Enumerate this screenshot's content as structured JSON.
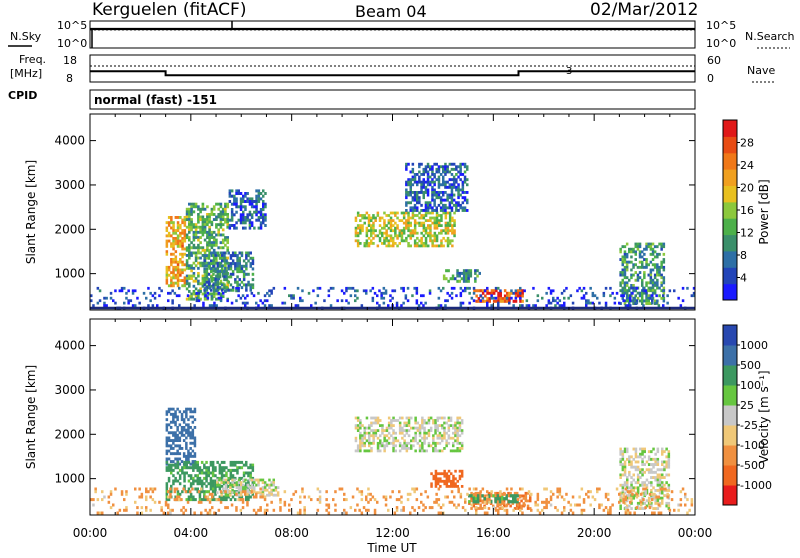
{
  "header": {
    "station": "Kerguelen (fitACF)",
    "beam": "Beam 04",
    "date": "02/Mar/2012"
  },
  "noise_panel": {
    "left_label": "N.Sky",
    "right_label": "N.Search",
    "left_ticks": [
      "10^5",
      "10^0"
    ],
    "right_ticks": [
      "10^5",
      "10^0"
    ]
  },
  "freq_panel": {
    "left_label_1": "Freq.",
    "left_label_2": "[MHz]",
    "left_ticks": [
      "18",
      "8"
    ],
    "right_label": "Nave",
    "right_ticks": [
      "60",
      "0"
    ],
    "marker": "3",
    "freq_steps": [
      {
        "from": "00:00",
        "to": "03:00",
        "mhz": 12.0
      },
      {
        "from": "03:00",
        "to": "17:00",
        "mhz": 10.5
      },
      {
        "from": "17:00",
        "to": "24:00",
        "mhz": 12.0
      }
    ]
  },
  "cpid": {
    "label": "CPID",
    "value": "normal (fast) -151"
  },
  "x_axis": {
    "label": "Time UT",
    "ticks": [
      "00:00",
      "04:00",
      "08:00",
      "12:00",
      "16:00",
      "20:00",
      "00:00"
    ]
  },
  "chart_data": [
    {
      "type": "heatmap",
      "name": "power",
      "ylabel": "Slant Range [km]",
      "yticks": [
        "1000",
        "2000",
        "3000",
        "4000"
      ],
      "ylim": [
        180,
        4600
      ],
      "xlim_hours": [
        0,
        24
      ],
      "colorbar": {
        "label": "Power [dB]",
        "ticks": [
          "4",
          "8",
          "12",
          "16",
          "20",
          "24",
          "28"
        ],
        "colors": [
          "#1a1aff",
          "#2244b8",
          "#2d6fa6",
          "#3a8f6a",
          "#4cb04a",
          "#8cc83c",
          "#e8c020",
          "#f0a020",
          "#f07818",
          "#e84c14",
          "#e01818"
        ]
      },
      "regions": [
        {
          "t0": 3.0,
          "t1": 3.8,
          "r0": 700,
          "r1": 2300,
          "level": 20
        },
        {
          "t0": 3.8,
          "t1": 5.5,
          "r0": 400,
          "r1": 2600,
          "level": 12
        },
        {
          "t0": 5.5,
          "t1": 7.0,
          "r0": 2000,
          "r1": 2900,
          "level": 6
        },
        {
          "t0": 4.5,
          "t1": 6.5,
          "r0": 600,
          "r1": 1500,
          "level": 8
        },
        {
          "t0": 10.5,
          "t1": 14.5,
          "r0": 1600,
          "r1": 2400,
          "level": 16
        },
        {
          "t0": 12.5,
          "t1": 15.0,
          "r0": 2400,
          "r1": 3500,
          "level": 6
        },
        {
          "t0": 14.0,
          "t1": 15.5,
          "r0": 800,
          "r1": 1100,
          "level": 10
        },
        {
          "t0": 15.2,
          "t1": 17.2,
          "r0": 350,
          "r1": 650,
          "level": 26
        },
        {
          "t0": 21.0,
          "t1": 22.8,
          "r0": 300,
          "r1": 1700,
          "level": 10
        },
        {
          "t0": 0.0,
          "t1": 24.0,
          "r0": 200,
          "r1": 700,
          "level": 4
        }
      ]
    },
    {
      "type": "heatmap",
      "name": "velocity",
      "ylabel": "Slant Range [km]",
      "yticks": [
        "1000",
        "2000",
        "3000",
        "4000"
      ],
      "ylim": [
        180,
        4600
      ],
      "xlim_hours": [
        0,
        24
      ],
      "colorbar": {
        "label": "Velocity [m s⁻¹]",
        "ticks": [
          "1000",
          "500",
          "100",
          "25",
          "-25",
          "-100",
          "-500",
          "-1000"
        ],
        "colors": [
          "#2848b0",
          "#3c70a8",
          "#3c9860",
          "#66c640",
          "#c8c8c8",
          "#f0c878",
          "#f09040",
          "#f06820",
          "#e81c1c"
        ]
      },
      "regions": [
        {
          "t0": 3.0,
          "t1": 4.2,
          "r0": 1300,
          "r1": 2600,
          "vel": 500
        },
        {
          "t0": 3.0,
          "t1": 6.5,
          "r0": 500,
          "r1": 1400,
          "vel": 100
        },
        {
          "t0": 5.0,
          "t1": 7.5,
          "r0": 600,
          "r1": 1000,
          "vel": 0
        },
        {
          "t0": 10.5,
          "t1": 14.8,
          "r0": 1600,
          "r1": 2400,
          "vel": 0
        },
        {
          "t0": 13.5,
          "t1": 14.8,
          "r0": 800,
          "r1": 1200,
          "vel": -500
        },
        {
          "t0": 15.0,
          "t1": 17.5,
          "r0": 300,
          "r1": 700,
          "vel": -300
        },
        {
          "t0": 15.0,
          "t1": 17.0,
          "r0": 450,
          "r1": 650,
          "vel": 100
        },
        {
          "t0": 21.0,
          "t1": 23.0,
          "r0": 300,
          "r1": 1700,
          "vel": 0
        },
        {
          "t0": 0.0,
          "t1": 24.0,
          "r0": 200,
          "r1": 800,
          "vel": -80
        }
      ]
    }
  ]
}
